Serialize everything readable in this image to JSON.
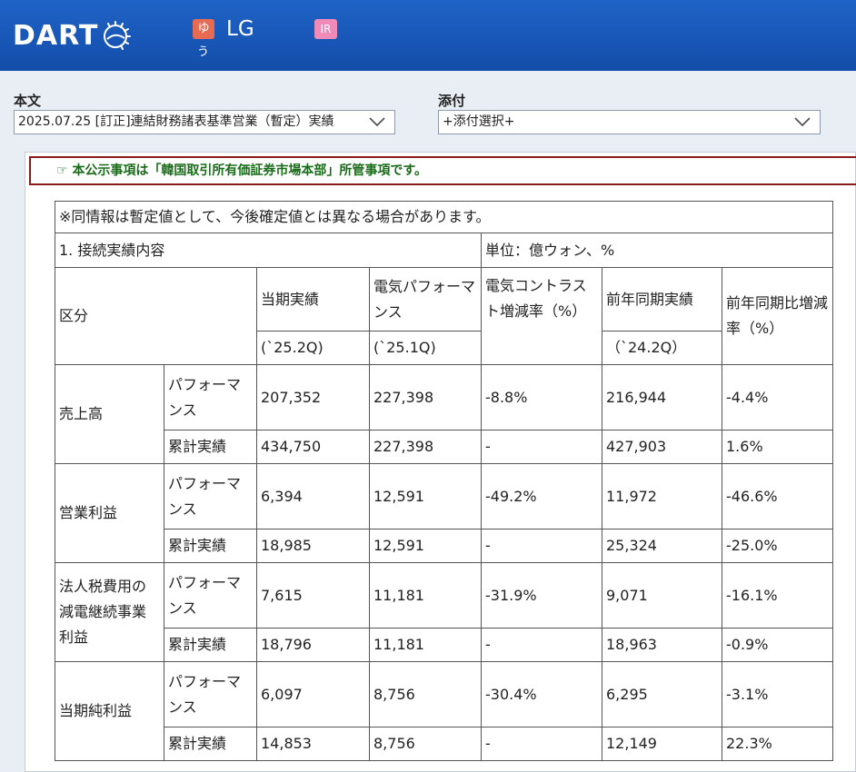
{
  "header": {
    "logo_text": "DART",
    "badge_yu": "ゆ",
    "badge_yu_sub": "う",
    "company_name": "LG",
    "badge_ir": "IR",
    "brand_color": "#1856b6"
  },
  "selects": {
    "main_label": "本文",
    "main_value": "2025.07.25 [訂正]連結財務諸表基準営業（暫定）実績",
    "attach_label": "添付",
    "attach_value": "+添付選択+"
  },
  "notice": {
    "icon": "☞",
    "text": "本公示事項は「韓国取引所有価証券市場本部」所管事項です。"
  },
  "table": {
    "note": "※同情報は暫定値として、今後確定値とは異なる場合があります。",
    "section_title": "1. 接続実績内容",
    "unit": "単位：億ウォン、%",
    "header": {
      "category": "区分",
      "current": "当期実績",
      "current_period": "(`25.2Q)",
      "prev_quarter": "電気パフォーマンス",
      "prev_quarter_period": "(`25.1Q)",
      "qoq_rate": "電気コントラスト増減率（%）",
      "prev_year": "前年同期実績",
      "prev_year_period": "（`24.2Q）",
      "yoy_rate": "前年同期比増減率（%）"
    },
    "rows": [
      {
        "label": "売上高",
        "perf": {
          "type": "パフォーマンス",
          "current": "207,352",
          "prev_q": "227,398",
          "qoq": "-8.8%",
          "prev_y": "216,944",
          "yoy": "-4.4%"
        },
        "cum": {
          "type": "累計実績",
          "current": "434,750",
          "prev_q": "227,398",
          "qoq": "-",
          "prev_y": "427,903",
          "yoy": "1.6%"
        }
      },
      {
        "label": "営業利益",
        "perf": {
          "type": "パフォーマンス",
          "current": "6,394",
          "prev_q": "12,591",
          "qoq": "-49.2%",
          "prev_y": "11,972",
          "yoy": "-46.6%"
        },
        "cum": {
          "type": "累計実績",
          "current": "18,985",
          "prev_q": "12,591",
          "qoq": "-",
          "prev_y": "25,324",
          "yoy": "-25.0%"
        }
      },
      {
        "label": "法人税費用の減電継続事業利益",
        "perf": {
          "type": "パフォーマンス",
          "current": "7,615",
          "prev_q": "11,181",
          "qoq": "-31.9%",
          "prev_y": "9,071",
          "yoy": "-16.1%"
        },
        "cum": {
          "type": "累計実績",
          "current": "18,796",
          "prev_q": "11,181",
          "qoq": "-",
          "prev_y": "18,963",
          "yoy": "-0.9%"
        }
      },
      {
        "label": "当期純利益",
        "perf": {
          "type": "パフォーマンス",
          "current": "6,097",
          "prev_q": "8,756",
          "qoq": "-30.4%",
          "prev_y": "6,295",
          "yoy": "-3.1%"
        },
        "cum": {
          "type": "累計実績",
          "current": "14,853",
          "prev_q": "8,756",
          "qoq": "-",
          "prev_y": "12,149",
          "yoy": "22.3%"
        }
      }
    ]
  }
}
